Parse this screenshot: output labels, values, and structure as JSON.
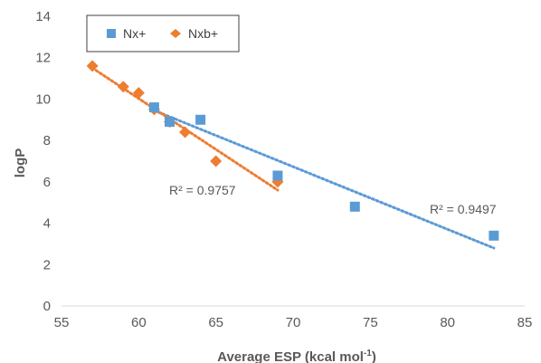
{
  "chart_data": {
    "type": "scatter",
    "title": "",
    "xlabel": "Average ESP (kcal mol",
    "xlabel_sup": "-1",
    "xlabel_close": ")",
    "ylabel": "logP",
    "xlim": [
      55,
      85
    ],
    "ylim": [
      0,
      14
    ],
    "xticks": [
      55,
      60,
      65,
      70,
      75,
      80,
      85
    ],
    "yticks": [
      0,
      2,
      4,
      6,
      8,
      10,
      12,
      14
    ],
    "grid": false,
    "legend_position": "top-left",
    "series": [
      {
        "name": "Nx+",
        "marker": "square",
        "color": "#5B9BD5",
        "points": [
          [
            61,
            9.6
          ],
          [
            62,
            8.9
          ],
          [
            64,
            9.0
          ],
          [
            69,
            6.3
          ],
          [
            74,
            4.8
          ],
          [
            83,
            3.4
          ]
        ],
        "trendline": {
          "x0": 61,
          "y0": 9.45,
          "x1": 83,
          "y1": 2.8
        },
        "r2_label": "R² = 0.9497"
      },
      {
        "name": "Nxb+",
        "marker": "diamond",
        "color": "#ED7D31",
        "points": [
          [
            57,
            11.6
          ],
          [
            59,
            10.6
          ],
          [
            60,
            10.3
          ],
          [
            61,
            9.5
          ],
          [
            62,
            8.9
          ],
          [
            63,
            8.4
          ],
          [
            65,
            7.0
          ],
          [
            69,
            6.0
          ]
        ],
        "trendline": {
          "x0": 57,
          "y0": 11.5,
          "x1": 69,
          "y1": 5.6
        },
        "r2_label": "R² = 0.9757"
      }
    ]
  }
}
